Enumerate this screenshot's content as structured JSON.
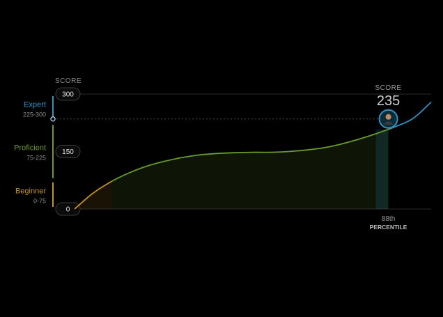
{
  "chart_data": {
    "type": "area",
    "y_axis_title": "SCORE",
    "ylim": [
      0,
      300
    ],
    "y_ticks": [
      0,
      150,
      300
    ],
    "bands": [
      {
        "name": "Expert",
        "range_label": "225-300",
        "min": 225,
        "max": 300,
        "color": "#2e93c4"
      },
      {
        "name": "Proficient",
        "range_label": "75-225",
        "min": 75,
        "max": 225,
        "color": "#6a9b2d"
      },
      {
        "name": "Beginner",
        "range_label": "0-75",
        "min": 0,
        "max": 75,
        "color": "#c69124"
      }
    ],
    "score_marker_value": 235,
    "user_score": {
      "title": "SCORE",
      "value": 235,
      "percentile": 88,
      "percentile_text": "88th",
      "percentile_label": "PERCENTILE"
    },
    "series": [
      {
        "type": "line",
        "x": [
          0,
          5,
          10,
          15,
          20,
          25,
          30,
          35,
          40,
          45,
          50,
          55,
          60,
          65,
          70,
          75,
          80,
          85,
          90,
          95,
          100
        ],
        "values": [
          0,
          40,
          70,
          93,
          111,
          124,
          134,
          141,
          145,
          147,
          148,
          148,
          150,
          154,
          160,
          170,
          183,
          198,
          215,
          237,
          279
        ]
      }
    ]
  }
}
